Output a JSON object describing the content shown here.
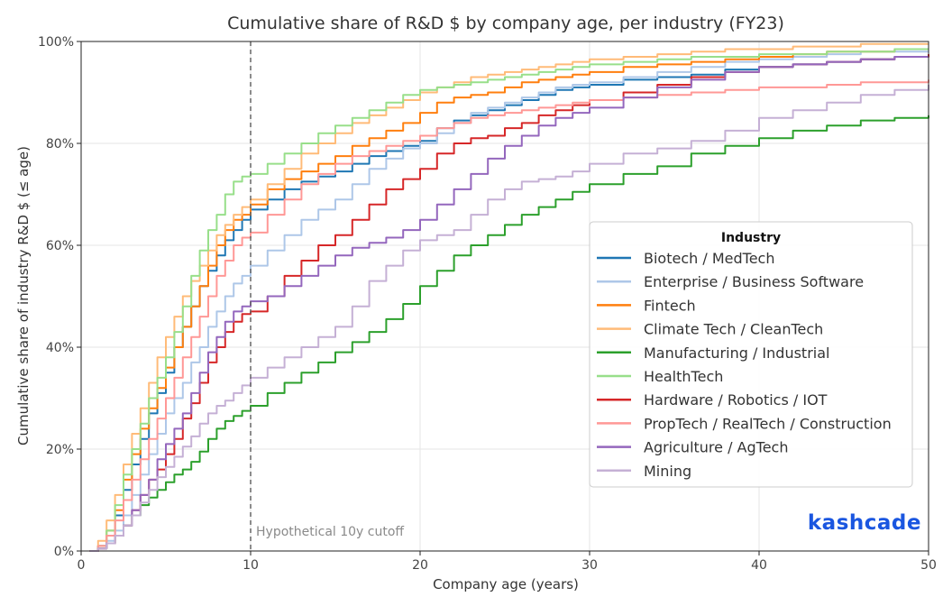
{
  "brand": {
    "logo_text": "kashcade",
    "color": "#1a56e0"
  },
  "chart_data": {
    "type": "line",
    "step": true,
    "title": "Cumulative share of R&D $ by company age, per industry (FY23)",
    "xlabel": "Company age (years)",
    "ylabel": "Cumulative share of industry R&D $ (≤ age)",
    "xlim": [
      0,
      50
    ],
    "ylim": [
      0,
      100
    ],
    "y_unit": "%",
    "xticks": [
      0,
      10,
      20,
      30,
      40,
      50
    ],
    "xtick_labels": [
      "0",
      "10",
      "20",
      "30",
      "40",
      "50"
    ],
    "yticks": [
      0,
      20,
      40,
      60,
      80,
      100
    ],
    "ytick_labels": [
      "0%",
      "20%",
      "40%",
      "60%",
      "80%",
      "100%"
    ],
    "grid": true,
    "legend": {
      "title": "Industry",
      "position": "right"
    },
    "annotations": [
      {
        "type": "vline",
        "x": 10,
        "style": "dashed",
        "color": "#666666",
        "label": "Hypothetical 10y cutoff"
      }
    ],
    "series": [
      {
        "name": "Biotech / MedTech",
        "color": "#1f77b4",
        "x": [
          0.5,
          1,
          1.5,
          2,
          2.5,
          3,
          3.5,
          4,
          4.5,
          5,
          5.5,
          6,
          6.5,
          7,
          7.5,
          8,
          8.5,
          9,
          9.5,
          10,
          11,
          12,
          13,
          14,
          15,
          16,
          17,
          18,
          19,
          20,
          21,
          22,
          23,
          24,
          25,
          26,
          27,
          28,
          29,
          30,
          32,
          34,
          36,
          38,
          40,
          42,
          44,
          46,
          48,
          50
        ],
        "y": [
          0,
          1,
          3,
          7,
          12,
          17,
          22,
          27,
          31,
          35,
          40,
          44,
          48,
          52,
          55,
          58,
          61,
          63,
          65,
          67,
          69,
          71,
          72.5,
          73.5,
          74.5,
          76,
          77.5,
          78.5,
          79.5,
          80.5,
          83,
          84.5,
          85.5,
          86.5,
          87.5,
          88.5,
          89.5,
          90.5,
          91,
          91.5,
          92.5,
          93,
          93.5,
          94.5,
          95,
          95.5,
          96,
          96.5,
          97,
          97
        ]
      },
      {
        "name": "Enterprise / Business Software",
        "color": "#aec7e8",
        "x": [
          0.5,
          1,
          1.5,
          2,
          2.5,
          3,
          3.5,
          4,
          4.5,
          5,
          5.5,
          6,
          6.5,
          7,
          7.5,
          8,
          8.5,
          9,
          9.5,
          10,
          11,
          12,
          13,
          14,
          15,
          16,
          17,
          18,
          19,
          20,
          21,
          22,
          23,
          24,
          25,
          26,
          27,
          28,
          29,
          30,
          32,
          34,
          36,
          38,
          40,
          42,
          44,
          46,
          48,
          50
        ],
        "y": [
          0,
          0.5,
          2,
          4,
          7,
          11,
          15,
          19,
          23,
          27,
          30,
          33,
          37,
          40,
          44,
          47,
          50,
          52.5,
          54,
          56,
          59,
          62,
          65,
          67,
          69,
          72,
          75,
          77,
          79,
          80,
          82,
          84,
          86,
          87,
          88,
          89,
          90,
          91,
          91.5,
          92,
          93,
          94,
          95,
          96,
          96.5,
          97,
          97.5,
          98,
          98,
          98
        ]
      },
      {
        "name": "Fintech",
        "color": "#ff7f0e",
        "x": [
          0.5,
          1,
          1.5,
          2,
          2.5,
          3,
          3.5,
          4,
          4.5,
          5,
          5.5,
          6,
          6.5,
          7,
          7.5,
          8,
          8.5,
          9,
          9.5,
          10,
          11,
          12,
          13,
          14,
          15,
          16,
          17,
          18,
          19,
          20,
          21,
          22,
          23,
          24,
          25,
          26,
          27,
          28,
          29,
          30,
          32,
          34,
          36,
          38,
          40,
          42,
          44,
          46,
          48,
          50
        ],
        "y": [
          0,
          1,
          4,
          8,
          14,
          19,
          24,
          28,
          32,
          36,
          40,
          44,
          48,
          52,
          56,
          60,
          63,
          65,
          66,
          68,
          71,
          73,
          74.5,
          76,
          77.5,
          79.5,
          81,
          82.5,
          84,
          86,
          88,
          89,
          89.5,
          90,
          91,
          92,
          92.5,
          93,
          93.5,
          94,
          95,
          95.5,
          96,
          96.5,
          97,
          97.5,
          98,
          98,
          98.5,
          98.5
        ]
      },
      {
        "name": "Climate Tech / CleanTech",
        "color": "#ffbb78",
        "x": [
          0.5,
          1,
          1.5,
          2,
          2.5,
          3,
          3.5,
          4,
          4.5,
          5,
          5.5,
          6,
          6.5,
          7,
          7.5,
          8,
          8.5,
          9,
          9.5,
          10,
          11,
          12,
          13,
          14,
          15,
          16,
          17,
          18,
          19,
          20,
          21,
          22,
          23,
          24,
          25,
          26,
          27,
          28,
          29,
          30,
          32,
          34,
          36,
          38,
          40,
          42,
          44,
          46,
          48,
          50
        ],
        "y": [
          0,
          2,
          6,
          11,
          17,
          23,
          28,
          33,
          38,
          42,
          46,
          50,
          53,
          56,
          59,
          62,
          64,
          66,
          67.5,
          69,
          72,
          75,
          78,
          80,
          82,
          84,
          85.5,
          87,
          88.5,
          90,
          91,
          92,
          93,
          93.5,
          94,
          94.5,
          95,
          95.5,
          96,
          96.5,
          97,
          97.5,
          98,
          98.5,
          98.5,
          99,
          99,
          99.5,
          99.5,
          99.5
        ]
      },
      {
        "name": "Manufacturing / Industrial",
        "color": "#2ca02c",
        "x": [
          0.5,
          1,
          1.5,
          2,
          2.5,
          3,
          3.5,
          4,
          4.5,
          5,
          5.5,
          6,
          6.5,
          7,
          7.5,
          8,
          8.5,
          9,
          9.5,
          10,
          11,
          12,
          13,
          14,
          15,
          16,
          17,
          18,
          19,
          20,
          21,
          22,
          23,
          24,
          25,
          26,
          27,
          28,
          29,
          30,
          32,
          34,
          36,
          38,
          40,
          42,
          44,
          46,
          48,
          50
        ],
        "y": [
          0,
          0.5,
          1.5,
          3,
          5,
          7,
          9,
          10.5,
          12,
          13.5,
          15,
          16,
          17.5,
          19.5,
          22,
          24,
          25.5,
          26.5,
          27.5,
          28.5,
          31,
          33,
          35,
          37,
          39,
          41,
          43,
          45.5,
          48.5,
          52,
          55,
          58,
          60,
          62,
          64,
          66,
          67.5,
          69,
          70.5,
          72,
          74,
          75.5,
          78,
          79.5,
          81,
          82.5,
          83.5,
          84.5,
          85,
          85.5
        ]
      },
      {
        "name": "HealthTech",
        "color": "#98df8a",
        "x": [
          0.5,
          1,
          1.5,
          2,
          2.5,
          3,
          3.5,
          4,
          4.5,
          5,
          5.5,
          6,
          6.5,
          7,
          7.5,
          8,
          8.5,
          9,
          9.5,
          10,
          11,
          12,
          13,
          14,
          15,
          16,
          17,
          18,
          19,
          20,
          21,
          22,
          23,
          24,
          25,
          26,
          27,
          28,
          29,
          30,
          32,
          34,
          36,
          38,
          40,
          42,
          44,
          46,
          48,
          50
        ],
        "y": [
          0,
          1,
          4,
          9,
          15,
          20,
          25,
          30,
          34,
          38,
          43,
          48,
          54,
          59,
          63,
          66,
          70,
          72.5,
          73.5,
          74,
          76,
          78,
          80,
          82,
          83.5,
          85,
          86.5,
          88,
          89.5,
          90.5,
          91,
          91.5,
          92,
          92.5,
          93,
          93.5,
          94,
          94.5,
          95,
          95.5,
          96,
          96.5,
          97,
          97,
          97.5,
          97.5,
          98,
          98,
          98.5,
          98.5
        ]
      },
      {
        "name": "Hardware / Robotics / IOT",
        "color": "#d62728",
        "x": [
          0.5,
          1,
          1.5,
          2,
          2.5,
          3,
          3.5,
          4,
          4.5,
          5,
          5.5,
          6,
          6.5,
          7,
          7.5,
          8,
          8.5,
          9,
          9.5,
          10,
          11,
          12,
          13,
          14,
          15,
          16,
          17,
          18,
          19,
          20,
          21,
          22,
          23,
          24,
          25,
          26,
          27,
          28,
          29,
          30,
          32,
          34,
          36,
          38,
          40,
          42,
          44,
          46,
          48,
          50
        ],
        "y": [
          0,
          0.5,
          1.5,
          3,
          5,
          8,
          11,
          14,
          16,
          19,
          22,
          26,
          29,
          33,
          37,
          40,
          43,
          45,
          46.5,
          47,
          50,
          54,
          57,
          60,
          62,
          65,
          68,
          71,
          73,
          75,
          78,
          80,
          81,
          81.5,
          83,
          84,
          85.5,
          86.5,
          87.5,
          88.5,
          90,
          91.5,
          93,
          94,
          95,
          95.5,
          96,
          96.5,
          97,
          97.5
        ]
      },
      {
        "name": "PropTech / RealTech / Construction",
        "color": "#ff9896",
        "x": [
          0.5,
          1,
          1.5,
          2,
          2.5,
          3,
          3.5,
          4,
          4.5,
          5,
          5.5,
          6,
          6.5,
          7,
          7.5,
          8,
          8.5,
          9,
          9.5,
          10,
          11,
          12,
          13,
          14,
          15,
          16,
          17,
          18,
          19,
          20,
          21,
          22,
          23,
          24,
          25,
          26,
          27,
          28,
          29,
          30,
          32,
          34,
          36,
          38,
          40,
          42,
          44,
          46,
          48,
          50
        ],
        "y": [
          0,
          1,
          3,
          6,
          10,
          14,
          18,
          22,
          26,
          30,
          34,
          38,
          42,
          46,
          50,
          54,
          57,
          60,
          61.5,
          62.5,
          66,
          69,
          72,
          74,
          76,
          77.5,
          78.5,
          79.5,
          80.5,
          81.5,
          83,
          84,
          85,
          85.5,
          86,
          86.5,
          87,
          87.5,
          88,
          88.5,
          89,
          89.5,
          90,
          90.5,
          91,
          91,
          91.5,
          92,
          92,
          92.5
        ]
      },
      {
        "name": "Agriculture / AgTech",
        "color": "#9467bd",
        "x": [
          0.5,
          1,
          1.5,
          2,
          2.5,
          3,
          3.5,
          4,
          4.5,
          5,
          5.5,
          6,
          6.5,
          7,
          7.5,
          8,
          8.5,
          9,
          9.5,
          10,
          11,
          12,
          13,
          14,
          15,
          16,
          17,
          18,
          19,
          20,
          21,
          22,
          23,
          24,
          25,
          26,
          27,
          28,
          29,
          30,
          32,
          34,
          36,
          38,
          40,
          42,
          44,
          46,
          48,
          50
        ],
        "y": [
          0,
          0.5,
          1.5,
          3,
          5,
          8,
          11,
          14,
          18,
          21,
          24,
          27,
          31,
          35,
          39,
          42,
          45,
          47,
          48,
          49,
          50,
          52,
          54,
          56,
          58,
          59.5,
          60.5,
          61.5,
          63,
          65,
          68,
          71,
          74,
          77,
          79.5,
          81.5,
          83.5,
          85,
          86,
          87,
          89,
          91,
          92.5,
          94,
          95,
          95.5,
          96,
          96.5,
          97,
          97
        ]
      },
      {
        "name": "Mining",
        "color": "#c5b0d5",
        "x": [
          0.5,
          1,
          1.5,
          2,
          2.5,
          3,
          3.5,
          4,
          4.5,
          5,
          5.5,
          6,
          6.5,
          7,
          7.5,
          8,
          8.5,
          9,
          9.5,
          10,
          11,
          12,
          13,
          14,
          15,
          16,
          17,
          18,
          19,
          20,
          21,
          22,
          23,
          24,
          25,
          26,
          27,
          28,
          29,
          30,
          32,
          34,
          36,
          38,
          40,
          42,
          44,
          46,
          48,
          50
        ],
        "y": [
          0,
          0.5,
          1.5,
          3,
          5,
          7,
          9.5,
          12,
          14.5,
          16.5,
          18.5,
          20.5,
          22.5,
          25,
          27,
          28.5,
          29.5,
          31,
          32.5,
          34,
          36,
          38,
          40,
          42,
          44,
          48,
          53,
          56,
          59,
          61,
          62,
          63,
          66,
          69,
          71,
          72.5,
          73,
          73.5,
          74.5,
          76,
          78,
          79,
          80.5,
          82.5,
          85,
          86.5,
          88,
          89.5,
          90.5,
          91.5
        ]
      }
    ]
  }
}
